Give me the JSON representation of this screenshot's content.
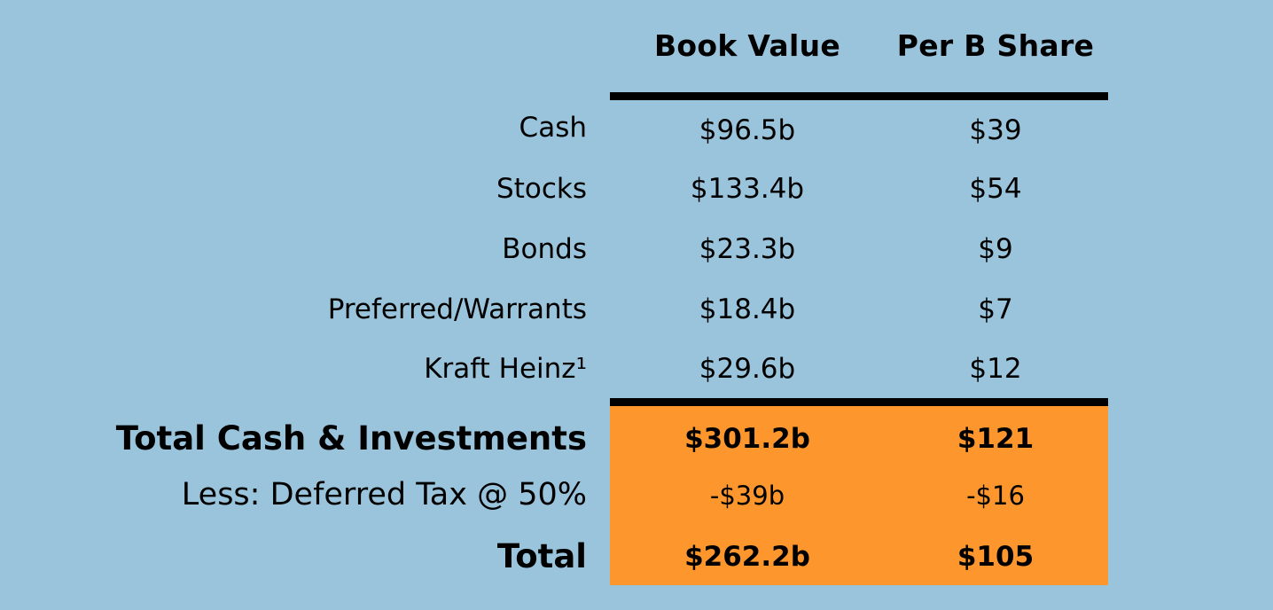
{
  "table": {
    "headers": {
      "book_value": "Book Value",
      "per_share": "Per B Share"
    },
    "rows": [
      {
        "label": "Cash",
        "book_value": "$96.5b",
        "per_share": "$39"
      },
      {
        "label": "Stocks",
        "book_value": "$133.4b",
        "per_share": "$54"
      },
      {
        "label": "Bonds",
        "book_value": "$23.3b",
        "per_share": "$9"
      },
      {
        "label": "Preferred/Warrants",
        "book_value": "$18.4b",
        "per_share": "$7"
      },
      {
        "label": "Kraft Heinz¹",
        "book_value": "$29.6b",
        "per_share": "$12"
      }
    ],
    "summary": [
      {
        "label": "Total Cash & Investments",
        "book_value": "$301.2b",
        "per_share": "$121"
      },
      {
        "label": "Less: Deferred Tax @ 50%",
        "book_value": "-$39b",
        "per_share": "-$16"
      },
      {
        "label": "Total",
        "book_value": "$262.2b",
        "per_share": "$105"
      }
    ]
  },
  "colors": {
    "background": "#9ac4dc",
    "highlight": "#fd962c",
    "rule": "#000000"
  }
}
